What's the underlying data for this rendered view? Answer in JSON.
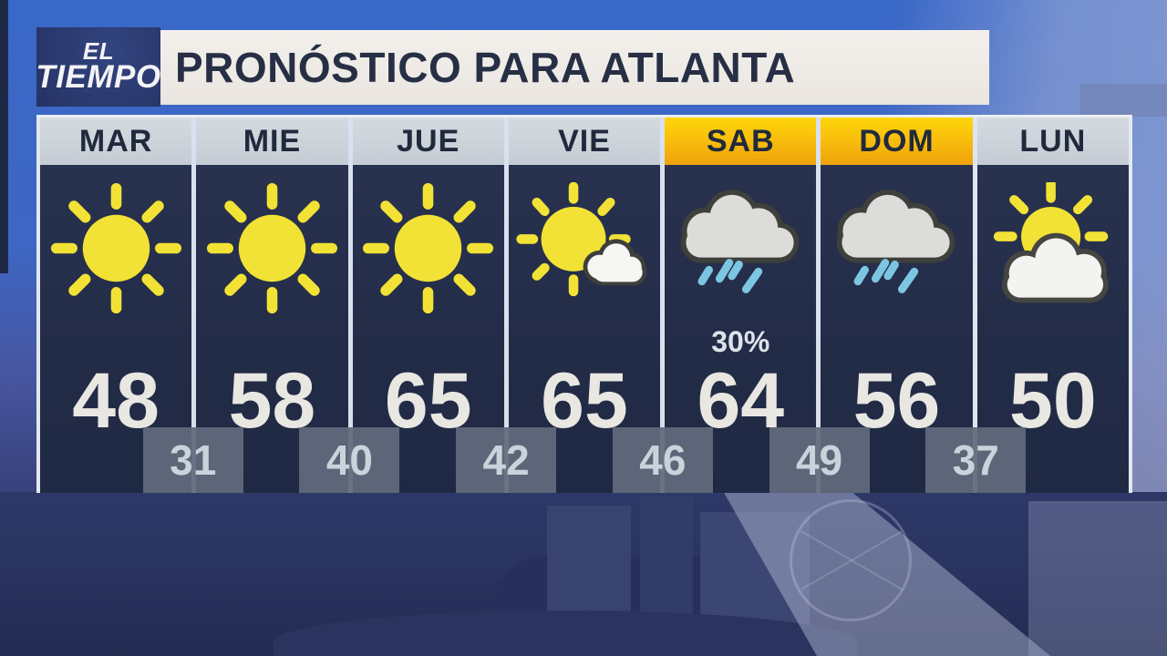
{
  "logo": {
    "line1": "EL",
    "line2": "TIEMPO",
    "trademark": "™"
  },
  "header": {
    "title": "PRONÓSTICO PARA ATLANTA"
  },
  "colors": {
    "highlight_top": "#ffd60b",
    "highlight_bottom": "#f0a30c",
    "day_header_gray": "#ccd3da",
    "panel_navy": "#242d47",
    "header_bar_bg": "#edeae5",
    "header_text": "#272f45",
    "sun_yellow": "#f2e235",
    "rain_blue": "#7cc6e2",
    "cloud_gray": "#dcdcda",
    "cloud_white": "#f4f4f2",
    "low_box_gray": "#616b7c",
    "high_temp_text": "#e9e7e2"
  },
  "forecast": {
    "days": [
      {
        "label": "MAR",
        "icon": "sunny",
        "high": "48",
        "pop": "",
        "highlight": false
      },
      {
        "label": "MIE",
        "icon": "sunny",
        "high": "58",
        "pop": "",
        "highlight": false
      },
      {
        "label": "JUE",
        "icon": "sunny",
        "high": "65",
        "pop": "",
        "highlight": false
      },
      {
        "label": "VIE",
        "icon": "partly-cloudy",
        "high": "65",
        "pop": "",
        "highlight": false
      },
      {
        "label": "SAB",
        "icon": "rain",
        "high": "64",
        "pop": "30%",
        "highlight": true
      },
      {
        "label": "DOM",
        "icon": "rain",
        "high": "56",
        "pop": "",
        "highlight": true
      },
      {
        "label": "LUN",
        "icon": "mostly-cloudy",
        "high": "50",
        "pop": "",
        "highlight": false
      }
    ],
    "lows": [
      "31",
      "40",
      "42",
      "46",
      "49",
      "37"
    ]
  },
  "chart_data": {
    "type": "table",
    "title": "PRONÓSTICO PARA ATLANTA",
    "columns": [
      "MAR",
      "MIE",
      "JUE",
      "VIE",
      "SAB",
      "DOM",
      "LUN"
    ],
    "conditions": [
      "sunny",
      "sunny",
      "sunny",
      "partly-cloudy",
      "rain",
      "rain",
      "mostly-cloudy"
    ],
    "highs": [
      48,
      58,
      65,
      65,
      64,
      56,
      50
    ],
    "lows": [
      31,
      40,
      42,
      46,
      49,
      37
    ],
    "precip_probability": {
      "SAB": "30%"
    },
    "highlighted_columns": [
      "SAB",
      "DOM"
    ]
  }
}
